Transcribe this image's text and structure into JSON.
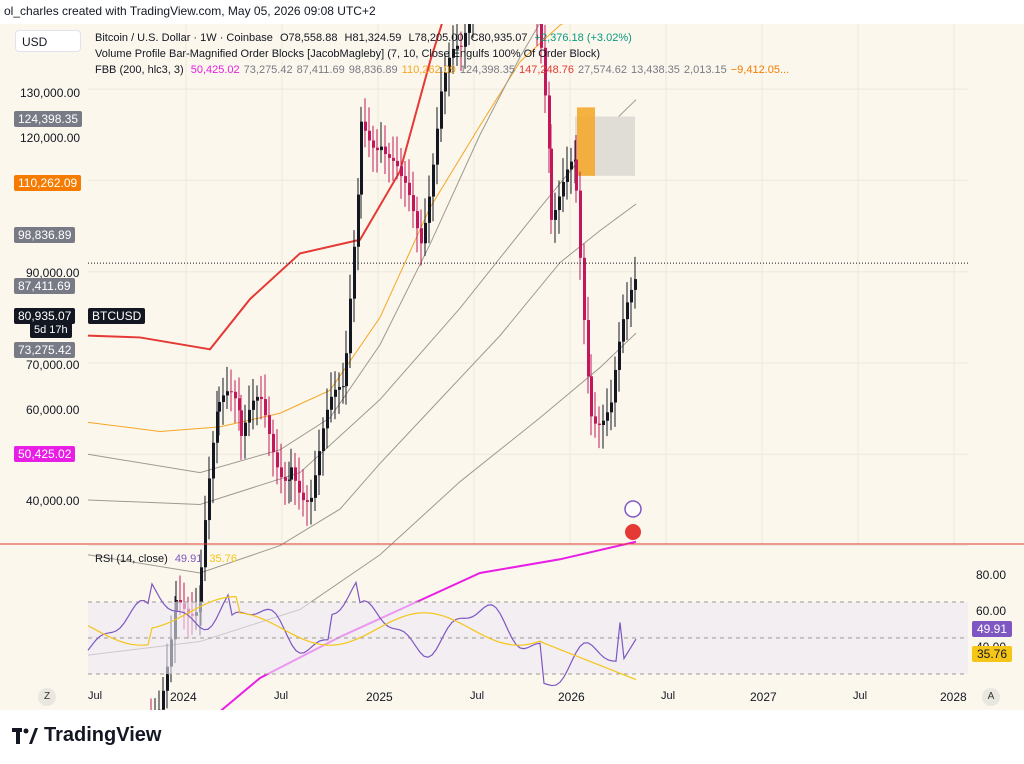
{
  "caption": "ol_charles created with TradingView.com, May 05, 2026 09:08 UTC+2",
  "currency_button": "USD",
  "legend": {
    "symbol": "Bitcoin / U.S. Dollar · 1W · Coinbase",
    "open": "O78,558.88",
    "high": "H81,324.59",
    "low": "L78,205.00",
    "close": "C80,935.07",
    "change": "+2,376.18 (+3.02%)",
    "indicator1": "Volume Profile Bar-Magnified Order Blocks [JacobMagleby] (7, 10, Close Engulfs 100% Of Order Block)",
    "indicator2_name": "FBB (200, hlc3, 3)",
    "fbb_values": [
      {
        "v": "50,425.02",
        "color": "#e91ee6"
      },
      {
        "v": "73,275.42",
        "color": "#787b86"
      },
      {
        "v": "87,411.69",
        "color": "#787b86"
      },
      {
        "v": "98,836.89",
        "color": "#787b86"
      },
      {
        "v": "110,262.09",
        "color": "#f5a623"
      },
      {
        "v": "124,398.35",
        "color": "#787b86"
      },
      {
        "v": "147,248.76",
        "color": "#e53935"
      },
      {
        "v": "27,574.62",
        "color": "#787b86"
      },
      {
        "v": "13,438.35",
        "color": "#787b86"
      },
      {
        "v": "2,013.15",
        "color": "#787b86"
      },
      {
        "v": "−9,412.05...",
        "color": "#f57c00"
      }
    ]
  },
  "price_axis": {
    "labels": [
      "130,000.00",
      "120,000.00",
      "90,000.00",
      "70,000.00",
      "60,000.00",
      "40,000.00"
    ],
    "tags": [
      {
        "label": "124,398.35",
        "color": "#787b86"
      },
      {
        "label": "110,262.09",
        "color": "#f57c00"
      },
      {
        "label": "98,836.89",
        "color": "#787b86"
      },
      {
        "label": "87,411.69",
        "color": "#787b86"
      },
      {
        "label": "73,275.42",
        "color": "#787b86"
      },
      {
        "label": "50,425.02",
        "color": "#e91ee6"
      }
    ],
    "last_price": "80,935.07",
    "countdown": "5d 17h",
    "symbol_tag": "BTCUSD"
  },
  "rsi": {
    "title": "RSI (14, close)",
    "value": "49.91",
    "ma_value": "35.76",
    "axis_labels": [
      "80.00",
      "60.00",
      "40.00"
    ]
  },
  "time_axis": [
    "Jul",
    "2024",
    "Jul",
    "2025",
    "Jul",
    "2026",
    "Jul",
    "2027",
    "Jul",
    "2028"
  ],
  "buttons": {
    "z": "Z",
    "a": "A"
  },
  "brand": "TradingView",
  "chart_data": {
    "type": "candlestick",
    "interval": "1W",
    "y_range": [
      30000,
      135000
    ],
    "bands": [
      {
        "name": "upper-red",
        "color": "#e53935"
      },
      {
        "name": "orange",
        "color": "#f5a623"
      },
      {
        "name": "magenta",
        "color": "#e91ee6"
      }
    ]
  }
}
